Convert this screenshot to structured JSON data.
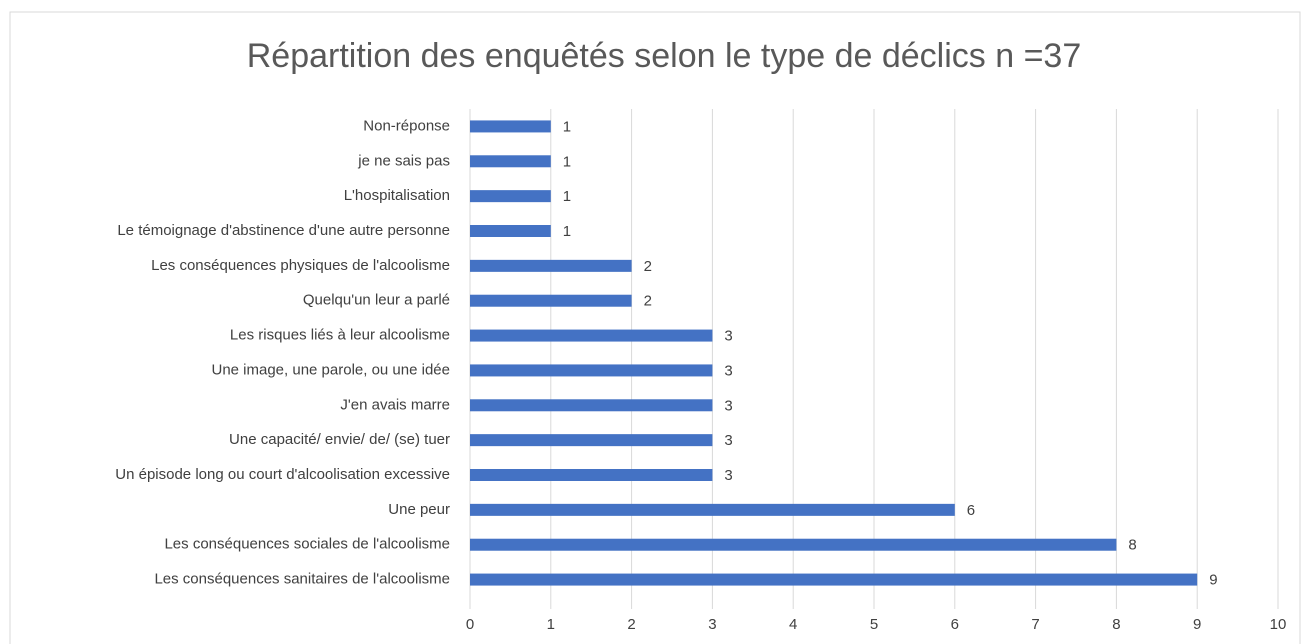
{
  "chart_data": {
    "type": "barh",
    "title": "Répartition des enquêtés selon le type de déclics n =37",
    "categories": [
      "Non-réponse",
      "je ne sais pas",
      "L'hospitalisation",
      "Le témoignage d'abstinence d'une autre personne",
      "Les conséquences physiques de l'alcoolisme",
      "Quelqu'un leur a parlé",
      "Les risques liés à leur alcoolisme",
      "Une image, une parole, ou une idée",
      "J'en avais marre",
      "Une capacité/ envie/ de/ (se) tuer",
      "Un épisode long ou court d'alcoolisation excessive",
      "Une peur",
      "Les conséquences sociales de l'alcoolisme",
      "Les conséquences sanitaires de l'alcoolisme"
    ],
    "values": [
      1,
      1,
      1,
      1,
      2,
      2,
      3,
      3,
      3,
      3,
      3,
      6,
      8,
      9
    ],
    "color": "#4472c4",
    "xlim": [
      0,
      10
    ],
    "xticks": [
      0,
      1,
      2,
      3,
      4,
      5,
      6,
      7,
      8,
      9,
      10
    ],
    "grid": true
  }
}
